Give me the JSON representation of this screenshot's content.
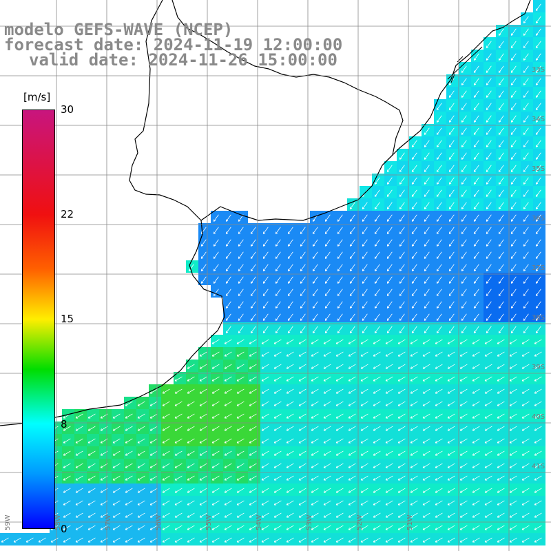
{
  "title": {
    "line1": "modelo GEFS-WAVE (NCEP)",
    "line2": "forecast date: 2024-11-19 12:00:00",
    "line3": "valid date: 2024-11-26 15:00:00"
  },
  "colorbar": {
    "unit": "[m/s]",
    "ticks": [
      "30",
      "22",
      "15",
      "8",
      "0"
    ],
    "tick_values": [
      30,
      22,
      15,
      8,
      0
    ],
    "range": [
      0,
      30
    ],
    "colors": [
      "#0000ff",
      "#0099ff",
      "#00ffff",
      "#00dd00",
      "#ffee00",
      "#ff6000",
      "#f01010",
      "#c8157e"
    ]
  },
  "map": {
    "variable": "wind speed and direction",
    "grid": true,
    "grid_color": "#888888",
    "coastline_color": "#000000",
    "land_color": "#ffffff",
    "prevailing_direction": "toward south-west",
    "lat_labels": [
      "33S",
      "34S",
      "35S",
      "36S",
      "37S",
      "38S",
      "39S",
      "40S",
      "41S"
    ],
    "lon_labels": [
      "59W",
      "58W",
      "57W",
      "56W",
      "55W",
      "54W",
      "53W",
      "52W",
      "51W"
    ]
  }
}
